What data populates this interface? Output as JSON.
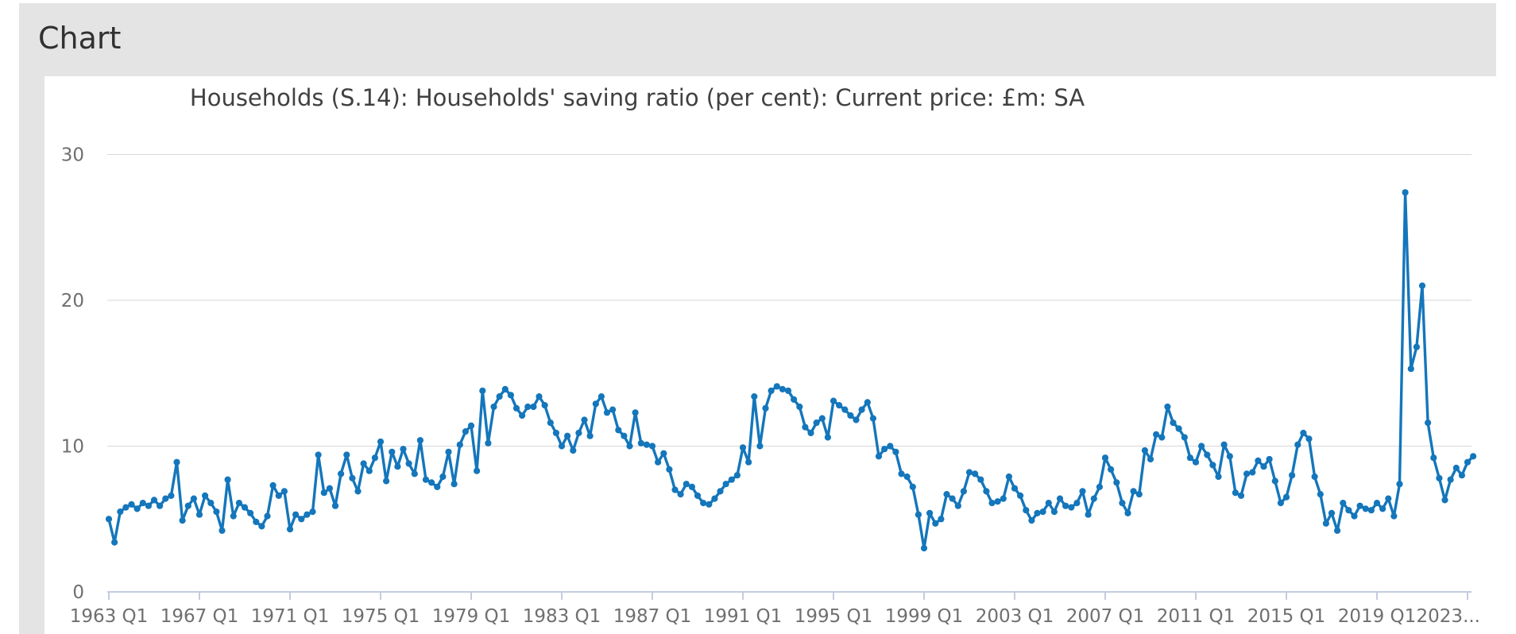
{
  "page": {
    "heading": "Chart"
  },
  "colors": {
    "line": "#1476bb",
    "grid": "#d7d7d7",
    "axis": "#c5cbdf",
    "title_text": "#414042",
    "tick_text": "#6f6f71",
    "heading_text": "#323132",
    "banner_bg": "#e4e4e4",
    "card_bg": "#ffffff"
  },
  "chart_data": {
    "type": "line",
    "title": "Households (S.14): Households' saving ratio (per cent): Current price: £m: SA",
    "xlabel": "",
    "ylabel": "",
    "frequency": "quarterly",
    "x_start": "1963 Q1",
    "x_end": "2023 Q2",
    "ylim": [
      0,
      30.5
    ],
    "grid": true,
    "legend": "none",
    "markers": true,
    "y_ticks": [
      0,
      10,
      20,
      30
    ],
    "x_tick_labels": [
      "1963 Q1",
      "1967 Q1",
      "1971 Q1",
      "1975 Q1",
      "1979 Q1",
      "1983 Q1",
      "1987 Q1",
      "1991 Q1",
      "1995 Q1",
      "1999 Q1",
      "2003 Q1",
      "2007 Q1",
      "2011 Q1",
      "2015 Q1",
      "2019 Q1",
      "2023..."
    ],
    "series": [
      {
        "name": "Households' saving ratio (per cent)",
        "values": [
          5.0,
          3.4,
          5.5,
          5.8,
          6.0,
          5.7,
          6.1,
          5.9,
          6.3,
          5.9,
          6.4,
          6.6,
          8.9,
          4.9,
          5.9,
          6.4,
          5.3,
          6.6,
          6.1,
          5.5,
          4.2,
          7.7,
          5.2,
          6.1,
          5.8,
          5.4,
          4.8,
          4.5,
          5.2,
          7.3,
          6.6,
          6.9,
          4.3,
          5.3,
          5.0,
          5.3,
          5.5,
          9.4,
          6.8,
          7.1,
          5.9,
          8.1,
          9.4,
          7.8,
          6.9,
          8.8,
          8.3,
          9.2,
          10.3,
          7.6,
          9.6,
          8.6,
          9.8,
          8.8,
          8.1,
          10.4,
          7.7,
          7.5,
          7.2,
          7.9,
          9.6,
          7.4,
          10.1,
          11.0,
          11.4,
          8.3,
          13.8,
          10.2,
          12.7,
          13.4,
          13.9,
          13.5,
          12.6,
          12.1,
          12.7,
          12.7,
          13.4,
          12.8,
          11.6,
          10.9,
          10.0,
          10.7,
          9.7,
          10.9,
          11.8,
          10.7,
          12.9,
          13.4,
          12.3,
          12.5,
          11.1,
          10.7,
          10.0,
          12.3,
          10.2,
          10.1,
          10.0,
          8.9,
          9.5,
          8.4,
          7.0,
          6.7,
          7.4,
          7.2,
          6.6,
          6.1,
          6.0,
          6.4,
          6.9,
          7.4,
          7.7,
          8.0,
          9.9,
          8.9,
          13.4,
          10.0,
          12.6,
          13.8,
          14.1,
          13.9,
          13.8,
          13.2,
          12.7,
          11.3,
          10.9,
          11.6,
          11.9,
          10.6,
          13.1,
          12.8,
          12.5,
          12.1,
          11.8,
          12.5,
          13.0,
          11.9,
          9.3,
          9.8,
          10.0,
          9.6,
          8.1,
          7.9,
          7.2,
          5.3,
          3.0,
          5.4,
          4.7,
          5.0,
          6.7,
          6.4,
          5.9,
          6.9,
          8.2,
          8.1,
          7.7,
          6.9,
          6.1,
          6.2,
          6.4,
          7.9,
          7.1,
          6.6,
          5.6,
          4.9,
          5.4,
          5.5,
          6.1,
          5.5,
          6.4,
          5.9,
          5.8,
          6.1,
          6.9,
          5.3,
          6.4,
          7.2,
          9.2,
          8.4,
          7.5,
          6.1,
          5.4,
          6.9,
          6.7,
          9.7,
          9.1,
          10.8,
          10.6,
          12.7,
          11.6,
          11.2,
          10.6,
          9.2,
          8.9,
          10.0,
          9.4,
          8.7,
          7.9,
          10.1,
          9.3,
          6.8,
          6.6,
          8.1,
          8.2,
          9.0,
          8.6,
          9.1,
          7.6,
          6.1,
          6.5,
          8.0,
          10.1,
          10.9,
          10.5,
          7.9,
          6.7,
          4.7,
          5.4,
          4.2,
          6.1,
          5.6,
          5.2,
          5.9,
          5.7,
          5.6,
          6.1,
          5.7,
          6.4,
          5.2,
          7.4,
          27.4,
          15.3,
          16.8,
          21.0,
          11.6,
          9.2,
          7.8,
          6.3,
          7.7,
          8.5,
          8.0,
          8.9,
          9.3
        ]
      }
    ]
  }
}
